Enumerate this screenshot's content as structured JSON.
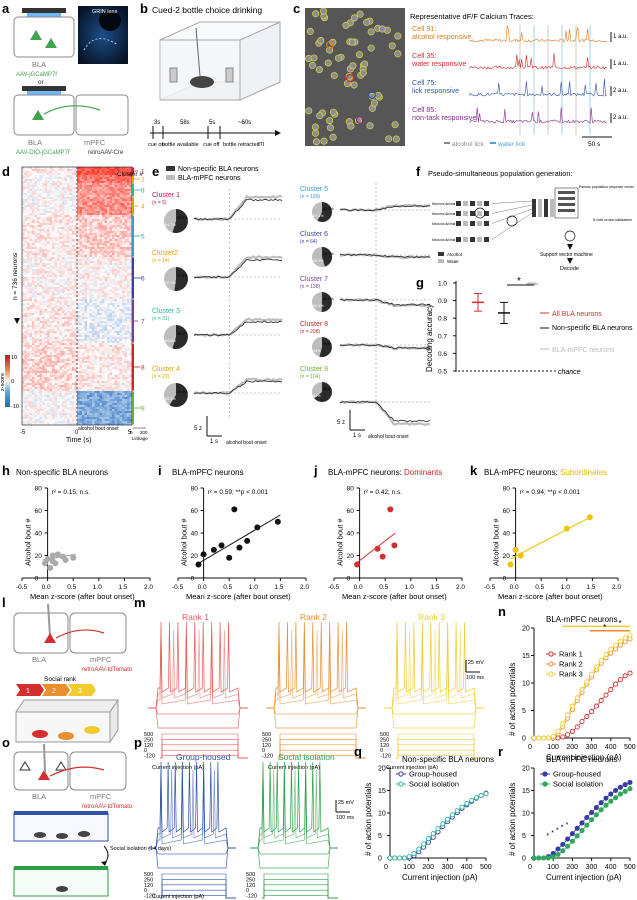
{
  "panels": [
    "a",
    "b",
    "c",
    "d",
    "e",
    "f",
    "g",
    "h",
    "i",
    "j",
    "k",
    "l",
    "m",
    "n",
    "o",
    "p",
    "q",
    "r"
  ],
  "a": {
    "label_bla": "BLA",
    "virus1": "AAV-jGCaMP7f",
    "or": "or",
    "virus2": "AAV-DIO-jGCaMP7f",
    "label_bla2": "BLA",
    "label_mpfc": "mPFC",
    "retro": "retroAAV-Cre",
    "inset": "GRIN lens"
  },
  "b": {
    "title": "Cued-2 bottle choice drinking",
    "t3": "3s",
    "t58": "58s",
    "t5": "5s",
    "t60": "~60s",
    "cue_on": "cue on",
    "bottle_avail": "bottle available",
    "cue_off": "cue off",
    "bottle_retr": "bottle retracted",
    "iti": "ITI"
  },
  "c": {
    "title": "Representative dF/F Calcium Traces:",
    "cells": [
      {
        "name": "Cell 91: alcohol responsive",
        "color": "#e07a1f",
        "scale": "1 a.u."
      },
      {
        "name": "Cell 35: water responsive",
        "color": "#d22c2c",
        "scale": "1 a.u."
      },
      {
        "name": "Cell 75: lick responsive",
        "color": "#2f52a8",
        "scale": "2 a.u."
      },
      {
        "name": "Cell 85: non-task responsive",
        "color": "#8a2c8e",
        "scale": "2 a.u."
      }
    ],
    "leg_alcohol": "alcohol lick",
    "leg_water": "water lick",
    "time_scale": "50 s"
  },
  "d": {
    "ylabel": "n = 736 neurons",
    "xlabel": "Time (s)",
    "xticks": [
      "-5",
      "0",
      "5"
    ],
    "onset": "alcohol bout onset",
    "cbar_label": "z-score",
    "cbar_ticks": [
      "10",
      "0",
      "-10"
    ],
    "cluster_title": "Cluster #",
    "clusters": [
      "1",
      "2",
      "3",
      "4",
      "5",
      "6",
      "7",
      "8",
      "9"
    ],
    "linkage": "Linkage",
    "linkage_ticks": [
      "0",
      "200"
    ]
  },
  "e": {
    "legend": [
      "Non-specific BLA neurons",
      "BLA-mPFC neurons"
    ],
    "clusters": [
      {
        "name": "Cluster 1",
        "n": "(n = 5)",
        "color": "#c2185b",
        "pct_a": "54.7%",
        "pct_b": "45.3%"
      },
      {
        "name": "Cluster2",
        "n": "(n = 14)",
        "color": "#e8a100",
        "pct_a": "52.1%",
        "pct_b": "47.9%"
      },
      {
        "name": "Cluster 3",
        "n": "(n = 31)",
        "color": "#2bb79a",
        "pct_a": "54.8%",
        "pct_b": "45.2%"
      },
      {
        "name": "Cluster 4",
        "n": "(n = 23)",
        "color": "#d4a800",
        "pct_a": "59.2%",
        "pct_b": "40.8%"
      },
      {
        "name": "Cluster 5",
        "n": "(n = 199)",
        "color": "#2aa0d8",
        "pct_a": "57.4%",
        "pct_b": "42.6%"
      },
      {
        "name": "Cluster 6",
        "n": "(n = 64)",
        "color": "#3d3fa6",
        "pct_a": "45.3%",
        "pct_b": "54.7%"
      },
      {
        "name": "Cluster 7",
        "n": "(n = 138)",
        "color": "#7a3f9d",
        "pct_a": "50.4%",
        "pct_b": "49.6%"
      },
      {
        "name": "Cluster 8",
        "n": "(n = 208)",
        "color": "#c62828",
        "pct_a": "54%",
        "pct_b": "46%"
      },
      {
        "name": "Cluster 9",
        "n": "(n = 104)",
        "color": "#6ab42d",
        "pct_a": "64%",
        "pct_b": "36%"
      }
    ],
    "scale_z": "5 z",
    "scale_t": "1 s",
    "xlabel": "alcohol bout onset"
  },
  "f": {
    "title": "Pseudo-simultaneous population generation:",
    "neuron_labels": [
      "Neurons Animal 1",
      "Neurons Animal 2",
      "Neurons Animal 3",
      "Neurons Animal n"
    ],
    "pseudo": "Pseudo population response vector",
    "cv": "5-fold cross-validation",
    "svm": "Support vector machine",
    "decode": "Decode",
    "leg_alcohol": "Alcohol",
    "leg_water": "Water"
  },
  "g": {
    "ylabel": "Decoding accuracy",
    "yticks": [
      "1.0",
      "0.9",
      "0.8",
      "0.7",
      "0.6",
      "0.5"
    ],
    "chance": "chance",
    "star": "*",
    "legend": [
      "All BLA neurons",
      "Non-specific BLA neurons",
      "BLA-mPFC neurons"
    ]
  },
  "h": {
    "title": "Non-specific BLA neurons",
    "stat": "r² = 0.15; n.s.",
    "color": "#aaaaaa",
    "points": [
      [
        -0.05,
        13
      ],
      [
        0.0,
        17
      ],
      [
        0.05,
        9
      ],
      [
        0.1,
        20
      ],
      [
        0.15,
        13
      ],
      [
        0.2,
        21
      ],
      [
        0.3,
        19
      ],
      [
        0.35,
        16
      ],
      [
        0.1,
        15
      ],
      [
        0.5,
        18
      ]
    ],
    "fit": [
      [
        -0.1,
        16
      ],
      [
        0.55,
        21
      ]
    ]
  },
  "i": {
    "title": "BLA-mPFC neurons",
    "stat": "r² = 0.59; **p < 0.001",
    "color": "#111111",
    "points": [
      [
        -0.1,
        12
      ],
      [
        0.0,
        21
      ],
      [
        0.2,
        25
      ],
      [
        0.35,
        29
      ],
      [
        0.5,
        18
      ],
      [
        0.6,
        61
      ],
      [
        0.7,
        27
      ],
      [
        0.85,
        33
      ],
      [
        1.05,
        45
      ],
      [
        1.45,
        50
      ]
    ],
    "fit": [
      [
        -0.1,
        13
      ],
      [
        1.5,
        56
      ]
    ]
  },
  "j": {
    "title": "BLA-mPFC neurons: ",
    "title_hl": "Dominants",
    "title_color": "#c62828",
    "stat": "r² = 0.42; n.s.",
    "color": "#d32f2f",
    "points": [
      [
        -0.05,
        12
      ],
      [
        0.35,
        26
      ],
      [
        0.45,
        19
      ],
      [
        0.6,
        61
      ],
      [
        0.68,
        29
      ]
    ],
    "fit": [
      [
        -0.1,
        12
      ],
      [
        0.7,
        40
      ]
    ]
  },
  "k": {
    "title": "BLA-mPFC neurons: ",
    "title_hl": "Subordinates",
    "title_color": "#e8b800",
    "stat": "r² = 0.94; **p < 0.001",
    "color": "#f2c400",
    "points": [
      [
        -0.1,
        12
      ],
      [
        0.0,
        25
      ],
      [
        0.1,
        20
      ],
      [
        1.0,
        44
      ],
      [
        1.45,
        54
      ]
    ],
    "fit": [
      [
        -0.1,
        17
      ],
      [
        1.5,
        55
      ]
    ]
  },
  "hk": {
    "ylabel": "Alcohol bout #",
    "xlabel": "Mean z-score (after bout onset)",
    "yticks": [
      "80",
      "60",
      "40",
      "20",
      "0"
    ],
    "xticks": [
      "-0.5",
      "0.0",
      "0.5",
      "1.0",
      "1.5",
      "2.0"
    ]
  },
  "l": {
    "bla": "BLA",
    "mpfc": "mPFC",
    "retro": "retroAAV-tdTomato",
    "social": "Social rank",
    "ranks": [
      "1",
      "2",
      "3"
    ]
  },
  "m": {
    "ranks": [
      {
        "name": "Rank 1",
        "color": "#e85a5a"
      },
      {
        "name": "Rank 2",
        "color": "#e88f2e"
      },
      {
        "name": "Rank 3",
        "color": "#f2cc2e"
      }
    ],
    "steps": [
      "500",
      "250",
      "120",
      "0",
      "-120"
    ],
    "xlabel": "Current injection (pA)",
    "sv": "25 mV",
    "st": "100 ms"
  },
  "n": {
    "title": "BLA-mPFC neurons",
    "ylabel": "# of action potentials",
    "xlabel": "Current injection (pA)",
    "yticks": [
      "20",
      "15",
      "10",
      "5",
      "0"
    ],
    "xticks": [
      "0",
      "100",
      "200",
      "300",
      "400",
      "500"
    ],
    "stars": [
      "*",
      "*"
    ],
    "x": [
      0,
      25,
      50,
      75,
      100,
      125,
      150,
      175,
      200,
      225,
      250,
      275,
      300,
      325,
      350,
      375,
      400,
      425,
      450,
      475,
      500
    ],
    "series": [
      {
        "name": "Rank 1",
        "color": "#d32f2f",
        "values": [
          0,
          0,
          0,
          0,
          0,
          0,
          0.2,
          0.6,
          1.2,
          2,
          3,
          3.9,
          4.8,
          5.8,
          6.8,
          7.8,
          8.8,
          9.8,
          10.6,
          11.3,
          11.8
        ]
      },
      {
        "name": "Rank 2",
        "color": "#e88f2e",
        "values": [
          0,
          0,
          0,
          0,
          0,
          0.8,
          2,
          3.6,
          5.2,
          6.8,
          8.3,
          9.8,
          11.1,
          12.4,
          13.6,
          14.6,
          15.4,
          16.2,
          16.9,
          17.5,
          18
        ]
      },
      {
        "name": "Rank 3",
        "color": "#f2cc2e",
        "values": [
          0,
          0,
          0,
          0,
          0.3,
          1.2,
          2.6,
          4.2,
          5.8,
          7.3,
          8.8,
          10.2,
          11.6,
          12.9,
          14.1,
          15.2,
          16.1,
          16.9,
          17.6,
          18.2,
          18.7
        ]
      }
    ]
  },
  "o": {
    "bla": "BLA",
    "mpfc": "mPFC",
    "retro": "retroAAV-tdTomato",
    "si": "Social isolation (14 days)"
  },
  "p": {
    "titles": [
      "Group-housed",
      "Social isolation"
    ],
    "colors": [
      "#2f52a8",
      "#2e9e4a"
    ],
    "steps": [
      "500",
      "250",
      "120",
      "0",
      "-120"
    ],
    "xlabel": "Current injection (pA)",
    "sv": "25 mV",
    "st": "100 ms"
  },
  "q": {
    "title": "Non-specific BLA neurons",
    "ylabel": "# of action potentials",
    "xlabel": "Current injection (pA)",
    "yticks": [
      "20",
      "15",
      "10",
      "5",
      "0"
    ],
    "xticks": [
      "0",
      "100",
      "200",
      "300",
      "400",
      "500"
    ],
    "x": [
      0,
      25,
      50,
      75,
      100,
      125,
      150,
      175,
      200,
      225,
      250,
      275,
      300,
      325,
      350,
      375,
      400,
      425,
      450,
      475,
      500
    ],
    "series": [
      {
        "name": "Group-housed",
        "color": "#3a3aa8",
        "values": [
          0,
          0,
          0,
          0,
          0,
          0.5,
          1.4,
          2.4,
          3.5,
          4.6,
          5.8,
          7,
          8.1,
          9.1,
          10.1,
          11,
          11.8,
          12.6,
          13.3,
          13.9,
          14.4
        ]
      },
      {
        "name": "Social isolation",
        "color": "#2bb39a",
        "values": [
          0,
          0,
          0,
          0,
          0.3,
          1,
          2,
          3.1,
          4.3,
          5.4,
          6.5,
          7.6,
          8.6,
          9.6,
          10.5,
          11.3,
          12.1,
          12.8,
          13.4,
          13.9,
          14.3
        ]
      }
    ]
  },
  "r": {
    "title": "BLA-mPFC neurons",
    "ylabel": "# of action potentials",
    "xlabel": "Current injection (pA)",
    "yticks": [
      "20",
      "15",
      "10",
      "5",
      "0"
    ],
    "xticks": [
      "0",
      "100",
      "200",
      "300",
      "400",
      "500"
    ],
    "stars": [
      "*",
      "*",
      "*",
      "*",
      "*"
    ],
    "x": [
      0,
      25,
      50,
      75,
      100,
      125,
      150,
      175,
      200,
      225,
      250,
      275,
      300,
      325,
      350,
      375,
      400,
      425,
      450,
      475,
      500
    ],
    "series": [
      {
        "name": "Group-housed",
        "color": "#3a3aa8",
        "values": [
          0,
          0,
          0,
          0.3,
          1,
          2,
          3,
          4.2,
          5.4,
          6.6,
          7.8,
          9,
          10.1,
          11.2,
          12.3,
          13.3,
          14.2,
          15,
          15.7,
          16.3,
          16.8
        ]
      },
      {
        "name": "Social isolation",
        "color": "#2ea85a",
        "values": [
          0,
          0,
          0,
          0,
          0.2,
          0.8,
          1.6,
          2.6,
          3.7,
          4.9,
          6.1,
          7.3,
          8.5,
          9.6,
          10.7,
          11.7,
          12.6,
          13.4,
          14.2,
          14.8,
          15.4
        ]
      }
    ]
  }
}
